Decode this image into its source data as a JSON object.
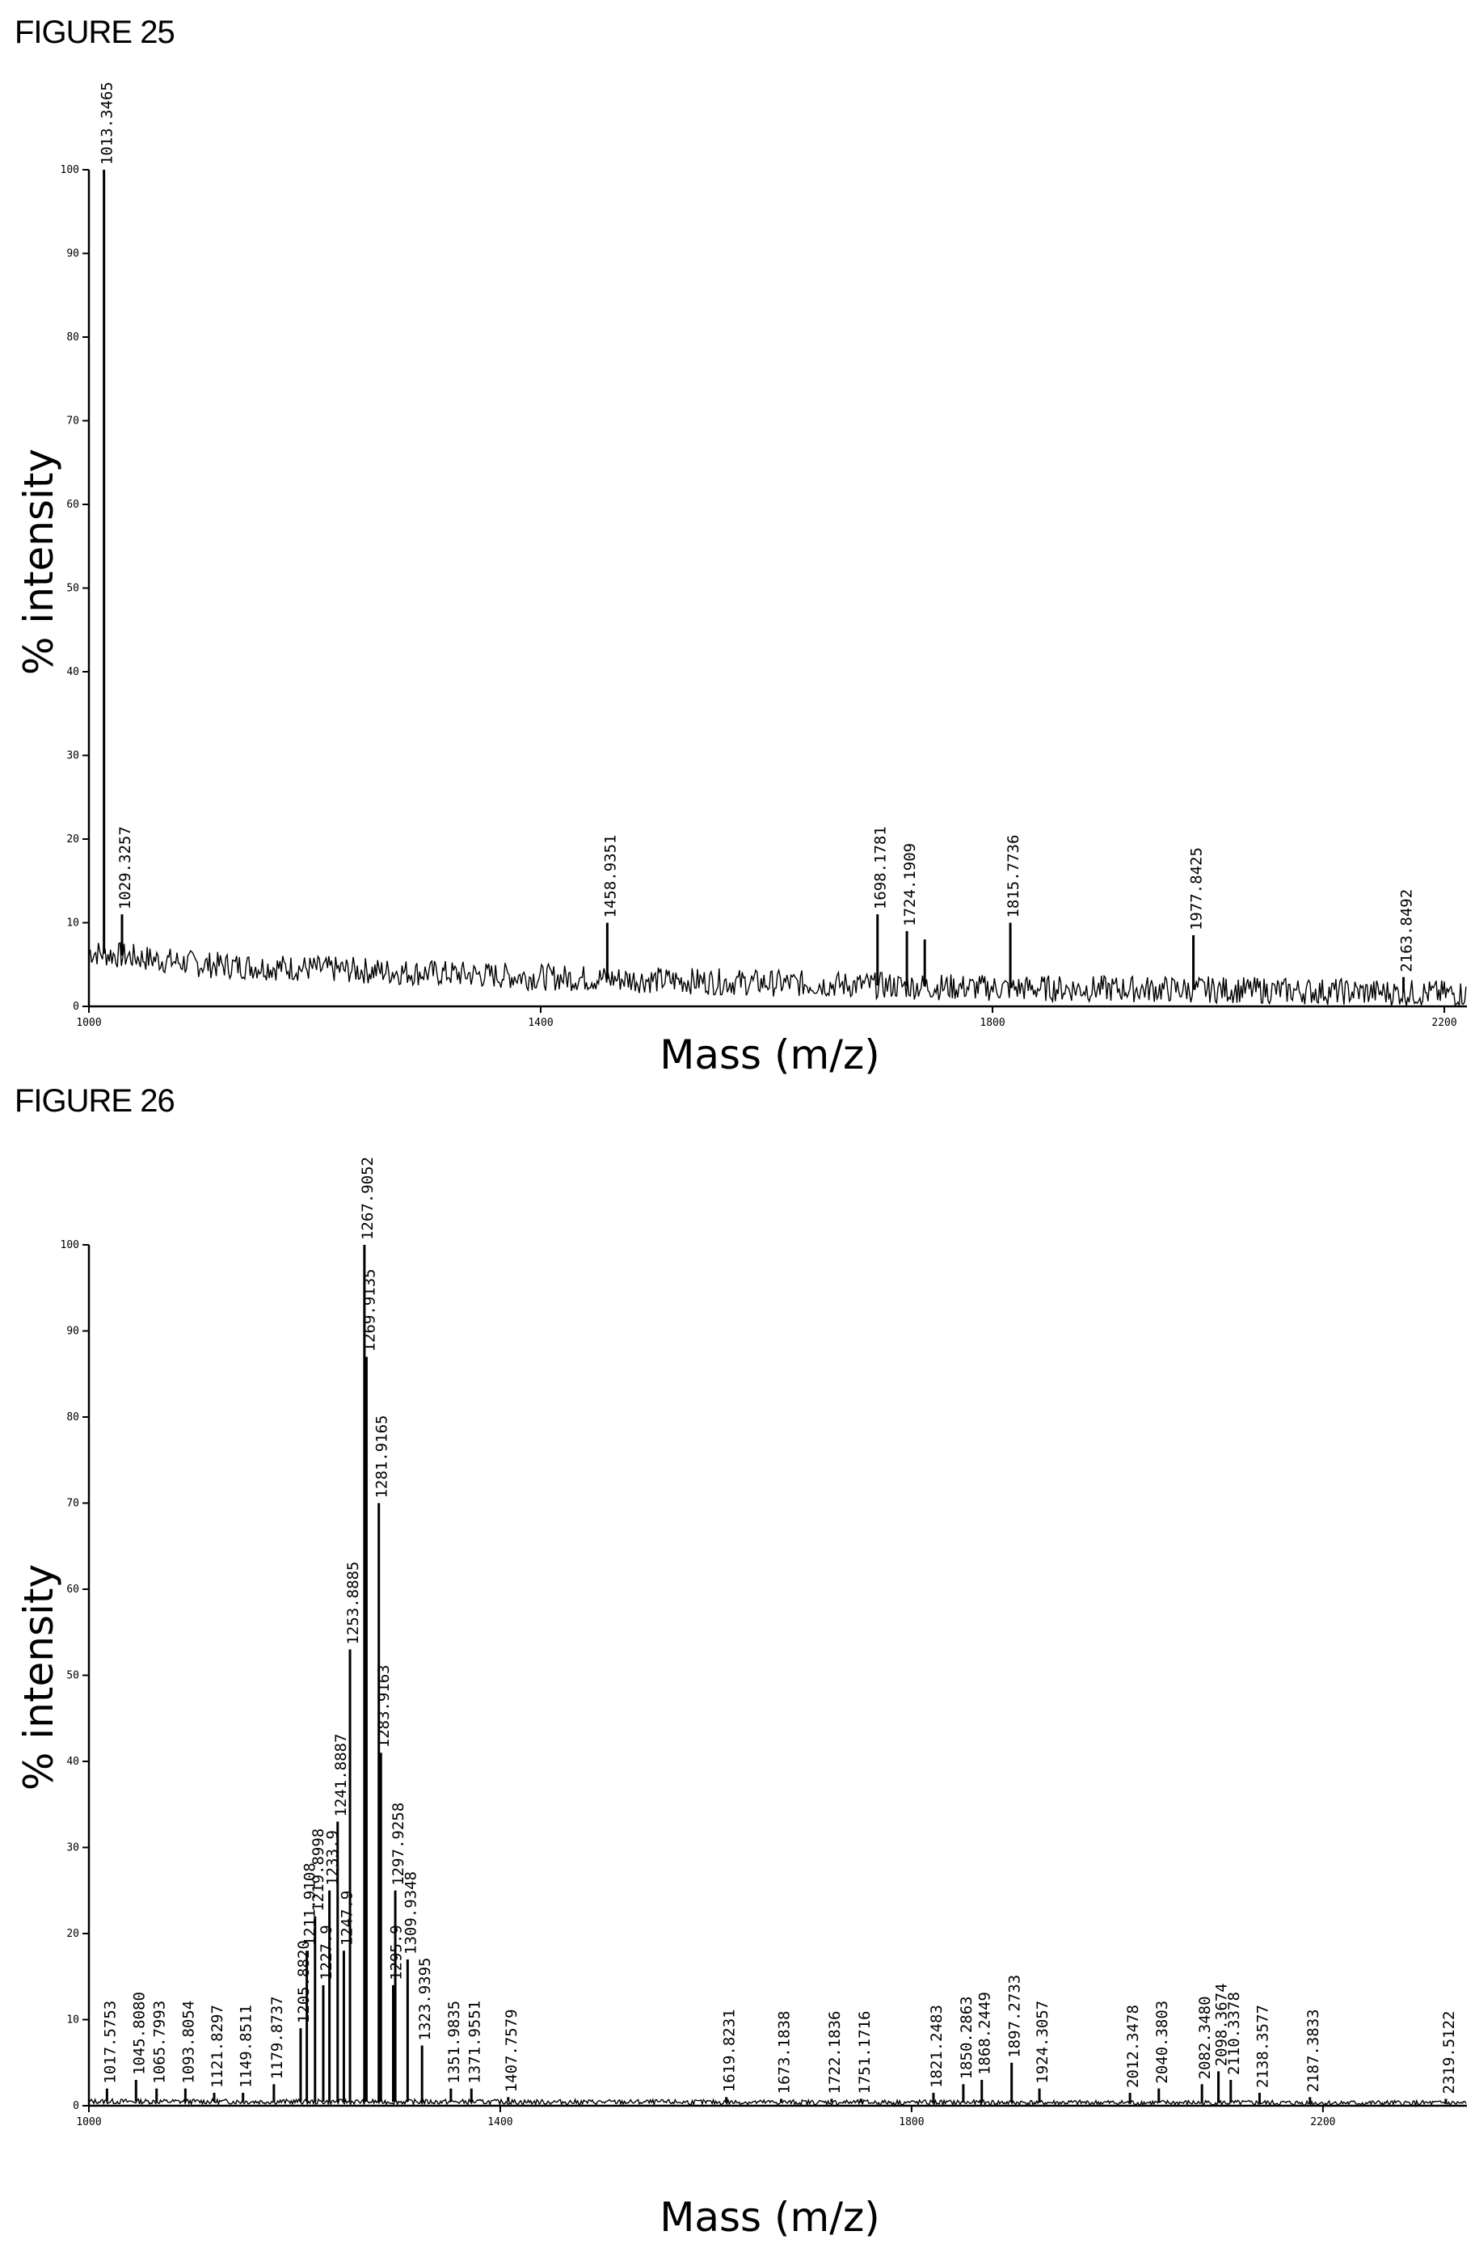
{
  "figures": [
    {
      "label": "FIGURE 25"
    },
    {
      "label": "FIGURE 26"
    }
  ],
  "chart_data": [
    {
      "type": "line",
      "title": "",
      "xlabel": "Mass (m/z)",
      "ylabel": "% intensity",
      "xlim": [
        1000,
        2220
      ],
      "ylim": [
        0,
        100
      ],
      "x_ticks": [
        1000,
        1400,
        1800,
        2200
      ],
      "y_ticks": [
        0,
        10,
        20,
        30,
        40,
        50,
        60,
        70,
        80,
        90,
        100
      ],
      "grid": false,
      "baseline": [
        [
          1000,
          6.5
        ],
        [
          1100,
          5
        ],
        [
          1200,
          4.5
        ],
        [
          1400,
          3.5
        ],
        [
          1600,
          2.8
        ],
        [
          1800,
          2.2
        ],
        [
          2000,
          2
        ],
        [
          2220,
          1.5
        ]
      ],
      "peaks": [
        {
          "x": 1013.3465,
          "y": 100,
          "label": "1013.3465"
        },
        {
          "x": 1029.3257,
          "y": 11,
          "label": "1029.3257"
        },
        {
          "x": 1458.9351,
          "y": 10,
          "label": "1458.9351"
        },
        {
          "x": 1698.1781,
          "y": 11,
          "label": "1698.1781"
        },
        {
          "x": 1724.1909,
          "y": 9,
          "label": "1724.1909"
        },
        {
          "x": 1740,
          "y": 8,
          "label": ""
        },
        {
          "x": 1815.7736,
          "y": 10,
          "label": "1815.7736"
        },
        {
          "x": 1977.8425,
          "y": 8.5,
          "label": "1977.8425"
        },
        {
          "x": 2163.8492,
          "y": 3.5,
          "label": "2163.8492"
        }
      ]
    },
    {
      "type": "line",
      "title": "",
      "xlabel": "Mass (m/z)",
      "ylabel": "% intensity",
      "xlim": [
        1000,
        2340
      ],
      "ylim": [
        0,
        100
      ],
      "x_ticks": [
        1000,
        1400,
        1800,
        2200
      ],
      "y_ticks": [
        0,
        10,
        20,
        30,
        40,
        50,
        60,
        70,
        80,
        90,
        100
      ],
      "grid": false,
      "baseline": [
        [
          1000,
          0.5
        ],
        [
          2340,
          0.3
        ]
      ],
      "peaks": [
        {
          "x": 1017.5753,
          "y": 2,
          "label": "1017.5753"
        },
        {
          "x": 1045.808,
          "y": 3,
          "label": "1045.8080"
        },
        {
          "x": 1065.7993,
          "y": 2,
          "label": "1065.7993"
        },
        {
          "x": 1093.8054,
          "y": 2,
          "label": "1093.8054"
        },
        {
          "x": 1121.8297,
          "y": 1.5,
          "label": "1121.8297"
        },
        {
          "x": 1149.8511,
          "y": 1.5,
          "label": "1149.8511"
        },
        {
          "x": 1179.8737,
          "y": 2.5,
          "label": "1179.8737"
        },
        {
          "x": 1205.882,
          "y": 9,
          "label": "1205.8820"
        },
        {
          "x": 1211.9108,
          "y": 18,
          "label": "1211.9108"
        },
        {
          "x": 1219.8998,
          "y": 22,
          "label": "1219.8998"
        },
        {
          "x": 1227.9,
          "y": 14,
          "label": "1227.9"
        },
        {
          "x": 1233.9,
          "y": 25,
          "label": "1233.9"
        },
        {
          "x": 1241.8887,
          "y": 33,
          "label": "1241.8887"
        },
        {
          "x": 1247.9,
          "y": 18,
          "label": "1247.9"
        },
        {
          "x": 1253.8885,
          "y": 53,
          "label": "1253.8885"
        },
        {
          "x": 1267.9052,
          "y": 100,
          "label": "1267.9052"
        },
        {
          "x": 1269.9135,
          "y": 87,
          "label": "1269.9135"
        },
        {
          "x": 1281.9165,
          "y": 70,
          "label": "1281.9165"
        },
        {
          "x": 1283.9163,
          "y": 41,
          "label": "1283.9163"
        },
        {
          "x": 1295.9,
          "y": 14,
          "label": "1295.9"
        },
        {
          "x": 1297.9258,
          "y": 25,
          "label": "1297.9258"
        },
        {
          "x": 1309.9348,
          "y": 17,
          "label": "1309.9348"
        },
        {
          "x": 1323.9395,
          "y": 7,
          "label": "1323.9395"
        },
        {
          "x": 1351.9835,
          "y": 2,
          "label": "1351.9835"
        },
        {
          "x": 1371.9551,
          "y": 2,
          "label": "1371.9551"
        },
        {
          "x": 1407.7579,
          "y": 1,
          "label": "1407.7579"
        },
        {
          "x": 1619.8231,
          "y": 1,
          "label": "1619.8231"
        },
        {
          "x": 1673.1838,
          "y": 0.8,
          "label": "1673.1838"
        },
        {
          "x": 1722.1836,
          "y": 0.8,
          "label": "1722.1836"
        },
        {
          "x": 1751.1716,
          "y": 0.8,
          "label": "1751.1716"
        },
        {
          "x": 1821.2483,
          "y": 1.5,
          "label": "1821.2483"
        },
        {
          "x": 1850.2863,
          "y": 2.5,
          "label": "1850.2863"
        },
        {
          "x": 1868.2449,
          "y": 3,
          "label": "1868.2449"
        },
        {
          "x": 1897.2733,
          "y": 5,
          "label": "1897.2733"
        },
        {
          "x": 1924.3057,
          "y": 2,
          "label": "1924.3057"
        },
        {
          "x": 2012.3478,
          "y": 1.5,
          "label": "2012.3478"
        },
        {
          "x": 2040.3803,
          "y": 2,
          "label": "2040.3803"
        },
        {
          "x": 2082.348,
          "y": 2.5,
          "label": "2082.3480"
        },
        {
          "x": 2098.3674,
          "y": 4,
          "label": "2098.3674"
        },
        {
          "x": 2110.3378,
          "y": 3,
          "label": "2110.3378"
        },
        {
          "x": 2138.3577,
          "y": 1.5,
          "label": "2138.3577"
        },
        {
          "x": 2187.3833,
          "y": 1,
          "label": "2187.3833"
        },
        {
          "x": 2319.5122,
          "y": 0.8,
          "label": "2319.5122"
        }
      ]
    }
  ]
}
